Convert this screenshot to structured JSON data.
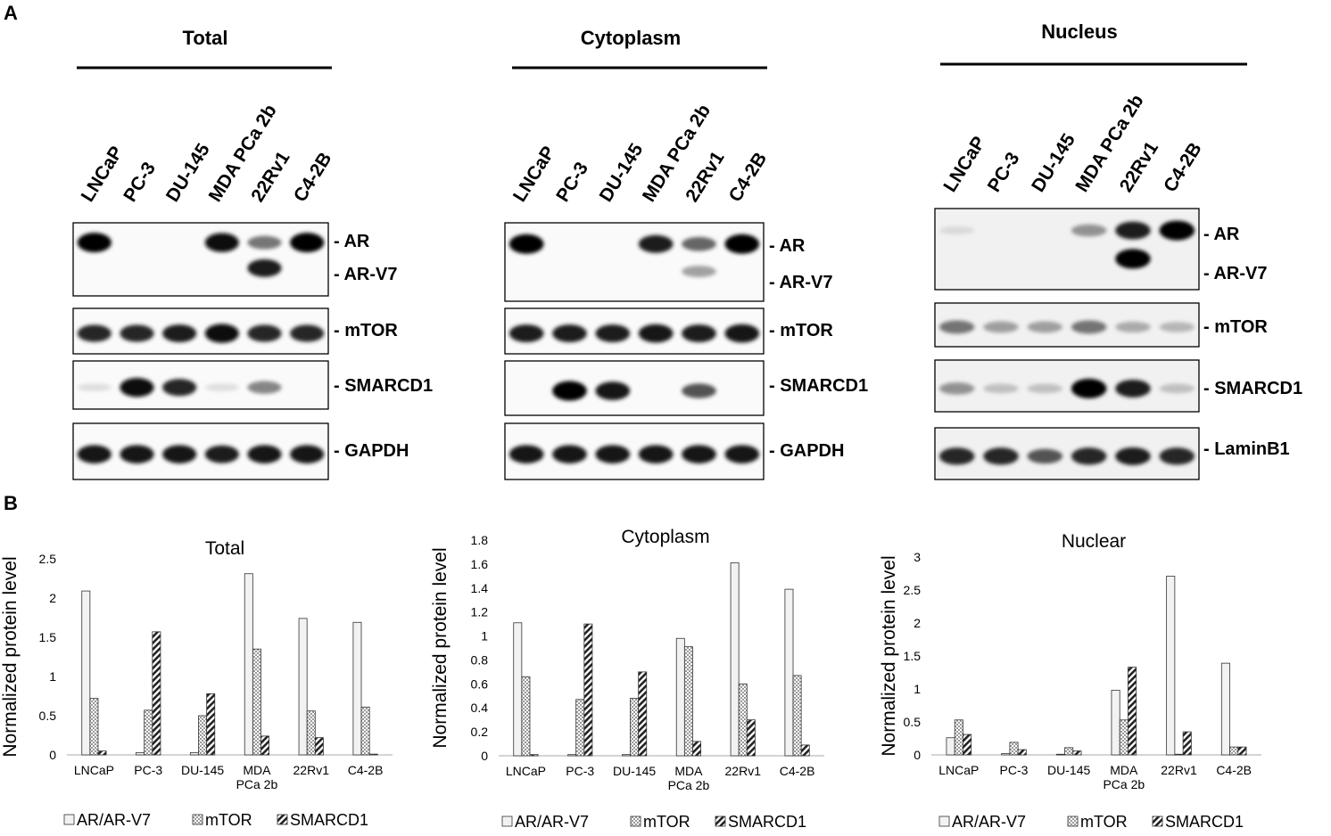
{
  "panel_labels": {
    "a": "A",
    "b": "B"
  },
  "blots": [
    {
      "title": "Total",
      "lanes": [
        "LNCaP",
        "PC-3",
        "DU-145",
        "MDA PCa 2b",
        "22Rv1",
        "C4-2B"
      ],
      "rows": [
        {
          "labels": [
            "AR",
            "AR-V7"
          ],
          "band_intensity": [
            [
              1.0,
              0,
              0,
              0.95,
              0.5,
              1.0
            ],
            [
              0,
              0,
              0,
              0,
              0.85,
              0
            ]
          ]
        },
        {
          "labels": [
            "mTOR"
          ],
          "band_intensity": [
            [
              0.8,
              0.8,
              0.85,
              0.95,
              0.8,
              0.8
            ]
          ]
        },
        {
          "labels": [
            "SMARCD1"
          ],
          "band_intensity": [
            [
              0.05,
              0.95,
              0.8,
              0.05,
              0.45,
              0
            ]
          ]
        },
        {
          "labels": [
            "GAPDH"
          ],
          "band_intensity": [
            [
              0.9,
              0.9,
              0.9,
              0.85,
              0.9,
              0.9
            ]
          ]
        }
      ]
    },
    {
      "title": "Cytoplasm",
      "lanes": [
        "LNCaP",
        "PC-3",
        "DU-145",
        "MDA PCa 2b",
        "22Rv1",
        "C4-2B"
      ],
      "rows": [
        {
          "labels": [
            "AR",
            "AR-V7"
          ],
          "band_intensity": [
            [
              1.0,
              0,
              0,
              0.85,
              0.55,
              1.0
            ],
            [
              0,
              0,
              0,
              0,
              0.35,
              0
            ]
          ]
        },
        {
          "labels": [
            "mTOR"
          ],
          "band_intensity": [
            [
              0.85,
              0.85,
              0.85,
              0.9,
              0.85,
              0.9
            ]
          ]
        },
        {
          "labels": [
            "SMARCD1"
          ],
          "band_intensity": [
            [
              0,
              1.0,
              0.9,
              0,
              0.6,
              0
            ]
          ]
        },
        {
          "labels": [
            "GAPDH"
          ],
          "band_intensity": [
            [
              0.9,
              0.9,
              0.9,
              0.9,
              0.9,
              0.9
            ]
          ]
        }
      ]
    },
    {
      "title": "Nucleus",
      "lanes": [
        "LNCaP",
        "PC-3",
        "DU-145",
        "MDA PCa 2b",
        "22Rv1",
        "C4-2B"
      ],
      "rows": [
        {
          "labels": [
            "AR",
            "AR-V7"
          ],
          "band_intensity": [
            [
              0.05,
              0,
              0,
              0.4,
              0.85,
              1.0
            ],
            [
              0,
              0,
              0,
              0,
              1.0,
              0
            ]
          ]
        },
        {
          "labels": [
            "mTOR"
          ],
          "band_intensity": [
            [
              0.5,
              0.35,
              0.35,
              0.5,
              0.3,
              0.25
            ]
          ]
        },
        {
          "labels": [
            "SMARCD1"
          ],
          "band_intensity": [
            [
              0.4,
              0.2,
              0.2,
              1.0,
              0.85,
              0.2
            ]
          ]
        },
        {
          "labels": [
            "LaminB1"
          ],
          "band_intensity": [
            [
              0.8,
              0.8,
              0.6,
              0.8,
              0.85,
              0.8
            ]
          ]
        }
      ]
    }
  ],
  "chart_data": [
    {
      "type": "bar",
      "title": "Total",
      "ylabel": "Normalized protein level",
      "categories": [
        "LNCaP",
        "PC-3",
        "DU-145",
        "MDA\nPCa 2b",
        "22Rv1",
        "C4-2B"
      ],
      "ylim": [
        0,
        2.5
      ],
      "yticks": [
        "0",
        "0.5",
        "1",
        "1.5",
        "2",
        "2.5"
      ],
      "series": [
        {
          "name": "AR/AR-V7",
          "values": [
            2.09,
            0.03,
            0.03,
            2.31,
            1.74,
            1.69
          ]
        },
        {
          "name": "mTOR",
          "values": [
            0.72,
            0.57,
            0.5,
            1.35,
            0.56,
            0.61
          ]
        },
        {
          "name": "SMARCD1",
          "values": [
            0.05,
            1.57,
            0.78,
            0.24,
            0.22,
            0.01
          ]
        }
      ],
      "legend": "bottom"
    },
    {
      "type": "bar",
      "title": "Cytoplasm",
      "ylabel": "Normalized protein level",
      "categories": [
        "LNCaP",
        "PC-3",
        "DU-145",
        "MDA\nPCa 2b",
        "22Rv1",
        "C4-2B"
      ],
      "ylim": [
        0,
        1.8
      ],
      "yticks": [
        "0",
        "0.2",
        "0.4",
        "0.6",
        "0.8",
        "1",
        "1.2",
        "1.4",
        "1.6",
        "1.8"
      ],
      "series": [
        {
          "name": "AR/AR-V7",
          "values": [
            1.11,
            0.01,
            0.01,
            0.98,
            1.61,
            1.39
          ]
        },
        {
          "name": "mTOR",
          "values": [
            0.66,
            0.47,
            0.48,
            0.91,
            0.6,
            0.67
          ]
        },
        {
          "name": "SMARCD1",
          "values": [
            0.01,
            1.1,
            0.7,
            0.12,
            0.3,
            0.09
          ]
        }
      ],
      "legend": "bottom"
    },
    {
      "type": "bar",
      "title": "Nuclear",
      "ylabel": "Normalized protein level",
      "categories": [
        "LNCaP",
        "PC-3",
        "DU-145",
        "MDA\nPCa 2b",
        "22Rv1",
        "C4-2B"
      ],
      "ylim": [
        0,
        3
      ],
      "yticks": [
        "0",
        "0.5",
        "1",
        "1.5",
        "2",
        "2.5",
        "3"
      ],
      "series": [
        {
          "name": "AR/AR-V7",
          "values": [
            0.26,
            0.02,
            0.01,
            0.98,
            2.71,
            1.39
          ]
        },
        {
          "name": "mTOR",
          "values": [
            0.53,
            0.19,
            0.11,
            0.53,
            0.01,
            0.12
          ]
        },
        {
          "name": "SMARCD1",
          "values": [
            0.31,
            0.08,
            0.06,
            1.33,
            0.35,
            0.12
          ]
        }
      ],
      "legend": "bottom"
    }
  ]
}
